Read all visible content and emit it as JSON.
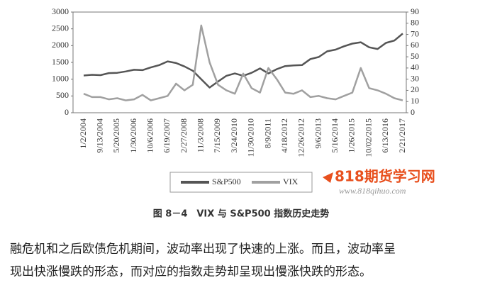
{
  "chart_data": {
    "type": "line",
    "title": "图 8－4　VIX 与 S&P500 指数历史走势",
    "categories": [
      "1/2/2004",
      null,
      "9/13/2004",
      null,
      "5/20/2005",
      null,
      "1/30/2006",
      null,
      "10/6/2006",
      null,
      "6/19/2007",
      null,
      "2/27/2008",
      null,
      "11/3/2008",
      null,
      "7/15/2009",
      null,
      "3/24/2010",
      null,
      "11/30/2010",
      null,
      "8/9/2011",
      null,
      "4/18/2012",
      null,
      "12/26/2012",
      null,
      "9/6/2013",
      null,
      "5/16/2014",
      null,
      "1/26/2015",
      null,
      "10/02/2015",
      null,
      "6/13/2016",
      null,
      "2/21/2017"
    ],
    "series": [
      {
        "name": "S&P500",
        "color": "#555555",
        "values": [
          1110,
          1130,
          1120,
          1180,
          1190,
          1230,
          1280,
          1270,
          1350,
          1420,
          1530,
          1480,
          1380,
          1250,
          1000,
          750,
          930,
          1100,
          1170,
          1100,
          1190,
          1320,
          1170,
          1300,
          1390,
          1410,
          1420,
          1600,
          1660,
          1830,
          1880,
          1980,
          2060,
          2100,
          1950,
          1900,
          2080,
          2150,
          2360
        ]
      },
      {
        "name": "VIX",
        "color": "#a0a0a0",
        "axis": "y2",
        "values": [
          17,
          14,
          14,
          12,
          13,
          11,
          12,
          16,
          11,
          13,
          15,
          26,
          20,
          25,
          78,
          45,
          25,
          20,
          17,
          35,
          22,
          18,
          40,
          30,
          18,
          17,
          20,
          14,
          15,
          13,
          12,
          15,
          18,
          40,
          22,
          20,
          17,
          13,
          11
        ]
      }
    ],
    "ylim": [
      0,
      3000
    ],
    "yticks": [
      0,
      500,
      1000,
      1500,
      2000,
      2500,
      3000
    ],
    "y2lim": [
      0,
      90
    ],
    "y2ticks": [
      0,
      10,
      20,
      30,
      40,
      50,
      60,
      70,
      80,
      90
    ],
    "legend": "bottom"
  },
  "watermark": {
    "brand": "818期货学习网",
    "url": "www.818qihuo.com"
  },
  "text": {
    "lines": [
      "融危机和之后欧债危机期间，波动率出现了快速的上涨。而且，波动率呈",
      "现出快涨慢跌的形态，而对应的指数走势却呈现出慢涨快跌的形态。"
    ]
  }
}
